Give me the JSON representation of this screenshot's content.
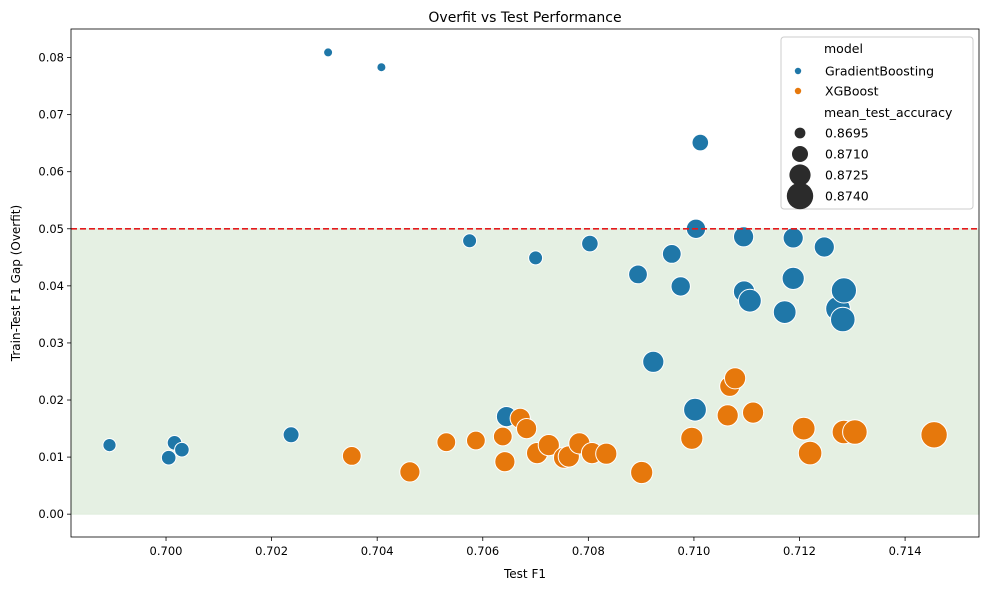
{
  "chart_data": {
    "type": "scatter",
    "title": "Overfit vs Test Performance",
    "xlabel": "Test F1",
    "ylabel": "Train-Test F1 Gap (Overfit)",
    "xlim": [
      0.6982,
      0.7154
    ],
    "ylim": [
      -0.004,
      0.085
    ],
    "xticks": [
      0.7,
      0.702,
      0.704,
      0.706,
      0.708,
      0.71,
      0.712,
      0.714
    ],
    "xtick_labels": [
      "0.700",
      "0.702",
      "0.704",
      "0.706",
      "0.708",
      "0.710",
      "0.712",
      "0.714"
    ],
    "yticks": [
      0.0,
      0.01,
      0.02,
      0.03,
      0.04,
      0.05,
      0.06,
      0.07,
      0.08
    ],
    "ytick_labels": [
      "0.00",
      "0.01",
      "0.02",
      "0.03",
      "0.04",
      "0.05",
      "0.06",
      "0.07",
      "0.08"
    ],
    "threshold": 0.05,
    "threshold_color": "#e41a1c",
    "shaded_region": [
      0.0,
      0.05
    ],
    "shade_color": "#e5f0e3",
    "grid": false,
    "legend": {
      "placement": "top-right",
      "hue_title": "model",
      "size_title": "mean_test_accuracy",
      "sizes": [
        {
          "label": "0.8695",
          "value": 0.8695
        },
        {
          "label": "0.8710",
          "value": 0.871
        },
        {
          "label": "0.8725",
          "value": 0.8725
        },
        {
          "label": "0.8740",
          "value": 0.874
        }
      ]
    },
    "series": [
      {
        "name": "GradientBoosting",
        "color": "#1f77a8",
        "points": [
          {
            "x": 0.70307,
            "y": 0.0809,
            "acc": 0.869
          },
          {
            "x": 0.70408,
            "y": 0.0783,
            "acc": 0.869
          },
          {
            "x": 0.69893,
            "y": 0.0121,
            "acc": 0.8702
          },
          {
            "x": 0.70005,
            "y": 0.0099,
            "acc": 0.8706
          },
          {
            "x": 0.70016,
            "y": 0.0125,
            "acc": 0.8706
          },
          {
            "x": 0.7003,
            "y": 0.0113,
            "acc": 0.8706
          },
          {
            "x": 0.70237,
            "y": 0.0139,
            "acc": 0.871
          },
          {
            "x": 0.70575,
            "y": 0.0479,
            "acc": 0.8704
          },
          {
            "x": 0.707,
            "y": 0.0449,
            "acc": 0.8704
          },
          {
            "x": 0.70803,
            "y": 0.0474,
            "acc": 0.8712
          },
          {
            "x": 0.70894,
            "y": 0.042,
            "acc": 0.8718
          },
          {
            "x": 0.70958,
            "y": 0.0456,
            "acc": 0.8718
          },
          {
            "x": 0.70975,
            "y": 0.0399,
            "acc": 0.872
          },
          {
            "x": 0.70923,
            "y": 0.0267,
            "acc": 0.8725
          },
          {
            "x": 0.71012,
            "y": 0.0651,
            "acc": 0.8712
          },
          {
            "x": 0.71004,
            "y": 0.05,
            "acc": 0.872
          },
          {
            "x": 0.71094,
            "y": 0.0486,
            "acc": 0.8722
          },
          {
            "x": 0.71095,
            "y": 0.039,
            "acc": 0.8726
          },
          {
            "x": 0.71106,
            "y": 0.0374,
            "acc": 0.873
          },
          {
            "x": 0.71172,
            "y": 0.0354,
            "acc": 0.873
          },
          {
            "x": 0.71188,
            "y": 0.0484,
            "acc": 0.8722
          },
          {
            "x": 0.71188,
            "y": 0.0413,
            "acc": 0.8728
          },
          {
            "x": 0.71247,
            "y": 0.0468,
            "acc": 0.8722
          },
          {
            "x": 0.71273,
            "y": 0.036,
            "acc": 0.8735
          },
          {
            "x": 0.71282,
            "y": 0.0341,
            "acc": 0.8735
          },
          {
            "x": 0.71284,
            "y": 0.0392,
            "acc": 0.8737
          },
          {
            "x": 0.70645,
            "y": 0.0171,
            "acc": 0.8722
          },
          {
            "x": 0.71002,
            "y": 0.0183,
            "acc": 0.873
          }
        ]
      },
      {
        "name": "XGBoost",
        "color": "#e6780c",
        "points": [
          {
            "x": 0.70352,
            "y": 0.0102,
            "acc": 0.8718
          },
          {
            "x": 0.70462,
            "y": 0.0074,
            "acc": 0.8722
          },
          {
            "x": 0.70531,
            "y": 0.0126,
            "acc": 0.8718
          },
          {
            "x": 0.70587,
            "y": 0.0129,
            "acc": 0.8718
          },
          {
            "x": 0.70638,
            "y": 0.0136,
            "acc": 0.8718
          },
          {
            "x": 0.70642,
            "y": 0.0092,
            "acc": 0.8722
          },
          {
            "x": 0.70671,
            "y": 0.0168,
            "acc": 0.8722
          },
          {
            "x": 0.70683,
            "y": 0.015,
            "acc": 0.8722
          },
          {
            "x": 0.70703,
            "y": 0.0107,
            "acc": 0.8725
          },
          {
            "x": 0.70725,
            "y": 0.0121,
            "acc": 0.8725
          },
          {
            "x": 0.70754,
            "y": 0.0099,
            "acc": 0.8725
          },
          {
            "x": 0.70763,
            "y": 0.0101,
            "acc": 0.8725
          },
          {
            "x": 0.70783,
            "y": 0.0124,
            "acc": 0.8725
          },
          {
            "x": 0.70807,
            "y": 0.0107,
            "acc": 0.8725
          },
          {
            "x": 0.70834,
            "y": 0.0106,
            "acc": 0.8725
          },
          {
            "x": 0.70901,
            "y": 0.0073,
            "acc": 0.8728
          },
          {
            "x": 0.70996,
            "y": 0.0133,
            "acc": 0.8728
          },
          {
            "x": 0.71064,
            "y": 0.0173,
            "acc": 0.8725
          },
          {
            "x": 0.71068,
            "y": 0.0224,
            "acc": 0.8722
          },
          {
            "x": 0.71078,
            "y": 0.0238,
            "acc": 0.8725
          },
          {
            "x": 0.71112,
            "y": 0.0178,
            "acc": 0.8725
          },
          {
            "x": 0.71208,
            "y": 0.015,
            "acc": 0.873
          },
          {
            "x": 0.7122,
            "y": 0.0107,
            "acc": 0.8732
          },
          {
            "x": 0.71284,
            "y": 0.0144,
            "acc": 0.8732
          },
          {
            "x": 0.71305,
            "y": 0.0144,
            "acc": 0.8735
          },
          {
            "x": 0.71455,
            "y": 0.0139,
            "acc": 0.874
          }
        ]
      }
    ]
  }
}
